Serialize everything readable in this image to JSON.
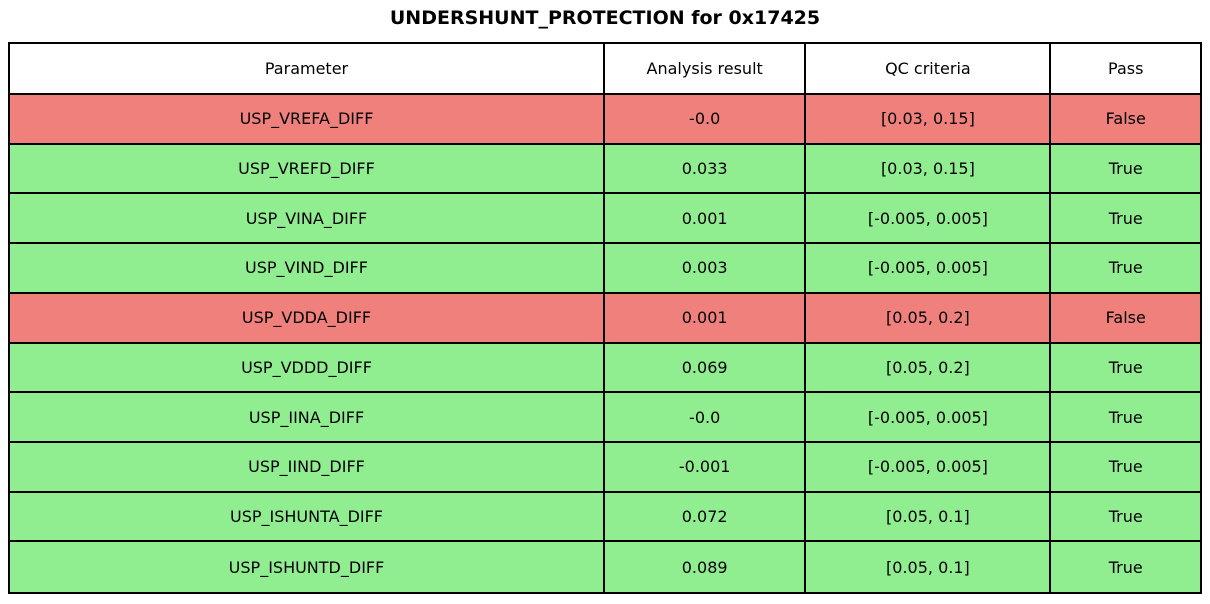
{
  "chart_data": {
    "type": "table",
    "title": "UNDERSHUNT_PROTECTION for 0x17425",
    "columns": [
      "Parameter",
      "Analysis result",
      "QC criteria",
      "Pass"
    ],
    "rows": [
      {
        "parameter": "USP_VREFA_DIFF",
        "analysis_result": "-0.0",
        "qc_criteria": "[0.03, 0.15]",
        "pass": "False"
      },
      {
        "parameter": "USP_VREFD_DIFF",
        "analysis_result": "0.033",
        "qc_criteria": "[0.03, 0.15]",
        "pass": "True"
      },
      {
        "parameter": "USP_VINA_DIFF",
        "analysis_result": "0.001",
        "qc_criteria": "[-0.005, 0.005]",
        "pass": "True"
      },
      {
        "parameter": "USP_VIND_DIFF",
        "analysis_result": "0.003",
        "qc_criteria": "[-0.005, 0.005]",
        "pass": "True"
      },
      {
        "parameter": "USP_VDDA_DIFF",
        "analysis_result": "0.001",
        "qc_criteria": "[0.05, 0.2]",
        "pass": "False"
      },
      {
        "parameter": "USP_VDDD_DIFF",
        "analysis_result": "0.069",
        "qc_criteria": "[0.05, 0.2]",
        "pass": "True"
      },
      {
        "parameter": "USP_IINA_DIFF",
        "analysis_result": "-0.0",
        "qc_criteria": "[-0.005, 0.005]",
        "pass": "True"
      },
      {
        "parameter": "USP_IIND_DIFF",
        "analysis_result": "-0.001",
        "qc_criteria": "[-0.005, 0.005]",
        "pass": "True"
      },
      {
        "parameter": "USP_ISHUNTA_DIFF",
        "analysis_result": "0.072",
        "qc_criteria": "[0.05, 0.1]",
        "pass": "True"
      },
      {
        "parameter": "USP_ISHUNTD_DIFF",
        "analysis_result": "0.089",
        "qc_criteria": "[0.05, 0.1]",
        "pass": "True"
      }
    ],
    "row_colors": {
      "True": "#90ee90",
      "False": "#f0807c"
    },
    "header_bg": "#ffffff",
    "border_color": "#000000",
    "layout": {
      "legend": "none",
      "grid": "full-borders"
    }
  }
}
